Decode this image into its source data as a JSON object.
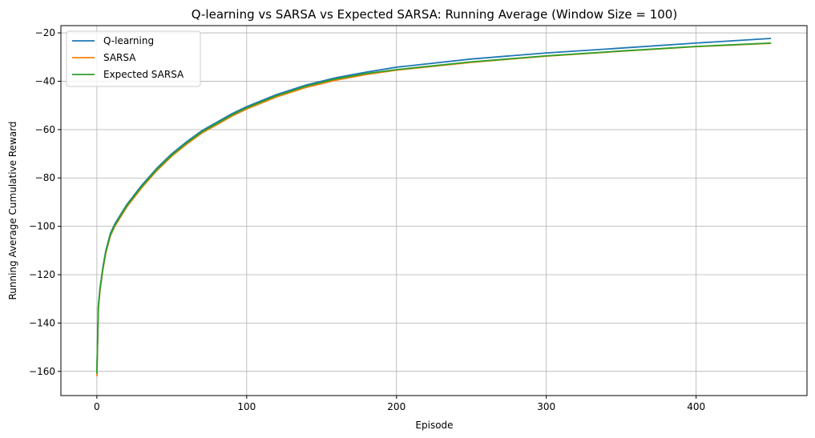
{
  "chart_data": {
    "type": "line",
    "title": "Q-learning vs SARSA vs Expected SARSA: Running Average (Window Size = 100)",
    "xlabel": "Episode",
    "ylabel": "Running Average Cumulative Reward",
    "xlim": [
      -24,
      474
    ],
    "ylim": [
      -170,
      -17
    ],
    "xticks": [
      0,
      100,
      200,
      300,
      400
    ],
    "yticks": [
      -160,
      -140,
      -120,
      -100,
      -80,
      -60,
      -40,
      -20
    ],
    "grid": true,
    "legend_position": "top-left",
    "series": [
      {
        "name": "Q-learning",
        "color": "#1f77b4",
        "x": [
          0,
          1,
          2,
          4,
          6,
          9,
          12,
          16,
          20,
          25,
          30,
          35,
          40,
          50,
          60,
          70,
          80,
          90,
          100,
          120,
          140,
          160,
          180,
          200,
          250,
          300,
          350,
          400,
          450
        ],
        "y": [
          -160,
          -133,
          -126,
          -117,
          -110,
          -103,
          -99,
          -95,
          -91,
          -87,
          -83,
          -79.5,
          -76,
          -70,
          -65,
          -60.5,
          -57,
          -53.5,
          -50.5,
          -45.5,
          -41.5,
          -38.5,
          -36.2,
          -34.2,
          -30.8,
          -28.3,
          -26.3,
          -24.2,
          -22.3
        ]
      },
      {
        "name": "SARSA",
        "color": "#ff7f0e",
        "x": [
          0,
          1,
          2,
          4,
          6,
          9,
          12,
          16,
          20,
          25,
          30,
          35,
          40,
          50,
          60,
          70,
          80,
          90,
          100,
          120,
          140,
          160,
          180,
          200,
          250,
          300,
          350,
          400,
          450
        ],
        "y": [
          -162,
          -134,
          -127,
          -118,
          -111,
          -104,
          -100,
          -96,
          -92,
          -88,
          -84,
          -80.5,
          -77,
          -71,
          -66,
          -61.5,
          -58,
          -54.5,
          -51.5,
          -46.5,
          -42.5,
          -39.5,
          -37.2,
          -35.4,
          -32.2,
          -29.6,
          -27.6,
          -25.7,
          -24.3
        ]
      },
      {
        "name": "Expected SARSA",
        "color": "#2ca02c",
        "x": [
          0,
          1,
          2,
          4,
          6,
          9,
          12,
          16,
          20,
          25,
          30,
          35,
          40,
          50,
          60,
          70,
          80,
          90,
          100,
          120,
          140,
          160,
          180,
          200,
          250,
          300,
          350,
          400,
          450
        ],
        "y": [
          -161,
          -133.5,
          -126.5,
          -117.5,
          -110.5,
          -103.5,
          -99.5,
          -95.5,
          -91.5,
          -87.5,
          -83.5,
          -80,
          -76.5,
          -70.5,
          -65.5,
          -61,
          -57.5,
          -54,
          -51,
          -46,
          -42,
          -39,
          -36.8,
          -35.2,
          -32,
          -29.5,
          -27.5,
          -25.6,
          -24.2
        ]
      }
    ]
  }
}
